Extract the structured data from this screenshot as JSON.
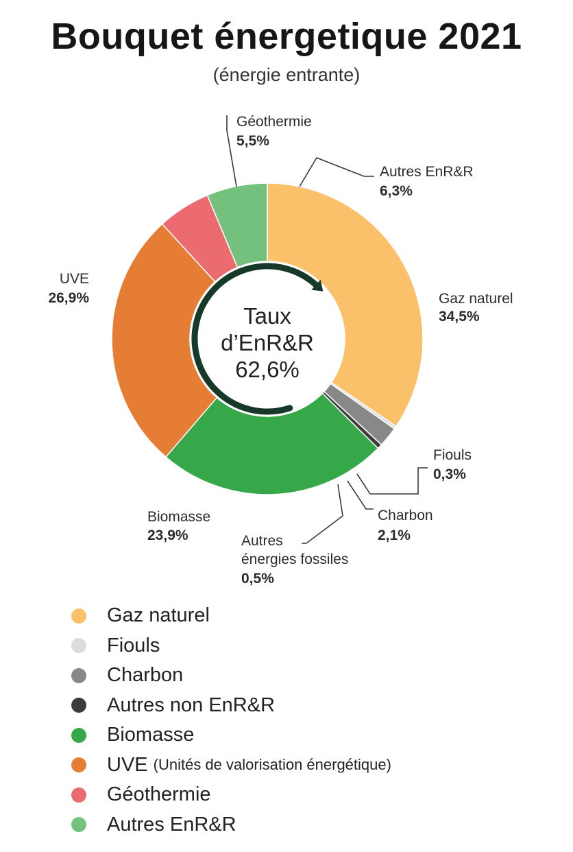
{
  "title": "Bouquet énergetique 2021",
  "subtitle": "(énergie entrante)",
  "chart_data": {
    "type": "donut",
    "center": {
      "line1": "Taux",
      "line2": "d’EnR&R",
      "line3": "62,6%"
    },
    "slices": [
      {
        "key": "gaz",
        "name": "Gaz naturel",
        "label": "34,5%",
        "value": 34.5,
        "color": "#FBC06A"
      },
      {
        "key": "fiouls",
        "name": "Fiouls",
        "label": "0,3%",
        "value": 0.3,
        "color": "#DCDCDC"
      },
      {
        "key": "charbon",
        "name": "Charbon",
        "label": "2,1%",
        "value": 2.1,
        "color": "#888888"
      },
      {
        "key": "autres_fossiles",
        "name": "Autres",
        "name2": "énergies fossiles",
        "label": "0,5%",
        "value": 0.5,
        "color": "#3C3C3C"
      },
      {
        "key": "biomasse",
        "name": "Biomasse",
        "label": "23,9%",
        "value": 23.9,
        "color": "#37A84A"
      },
      {
        "key": "uve",
        "name": "UVE",
        "label": "26,9%",
        "value": 26.9,
        "color": "#E67D34"
      },
      {
        "key": "geo",
        "name": "Géothermie",
        "label": "5,5%",
        "value": 5.5,
        "color": "#EB6B6E"
      },
      {
        "key": "autres_enr",
        "name": "Autres EnR&R",
        "label": "6,3%",
        "value": 6.3,
        "color": "#74C07D"
      }
    ],
    "legend": [
      {
        "label": "Gaz naturel",
        "color": "#FBC06A"
      },
      {
        "label": "Fiouls",
        "color": "#DCDCDC"
      },
      {
        "label": "Charbon",
        "color": "#888888"
      },
      {
        "label": "Autres non EnR&R",
        "color": "#3C3C3C"
      },
      {
        "label": "Biomasse",
        "color": "#37A84A"
      },
      {
        "label": "UVE",
        "sublabel": "(Unités de valorisation énergétique)",
        "color": "#E67D34"
      },
      {
        "label": "Géothermie",
        "color": "#EB6B6E"
      },
      {
        "label": "Autres EnR&R",
        "color": "#74C07D"
      }
    ],
    "renewable_arrow_color": "#17392A"
  }
}
